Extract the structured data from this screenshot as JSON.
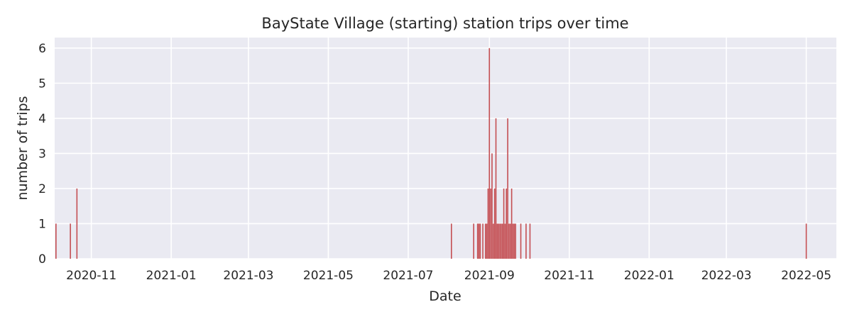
{
  "chart_data": {
    "type": "bar",
    "title": "BayState Village (starting) station trips over time",
    "xlabel": "Date",
    "ylabel": "number of trips",
    "x_range": [
      "2020-10-04",
      "2022-05-24"
    ],
    "ylim": [
      0,
      6.3
    ],
    "grid": true,
    "x_ticks": [
      "2020-11",
      "2021-01",
      "2021-03",
      "2021-05",
      "2021-07",
      "2021-09",
      "2021-11",
      "2022-01",
      "2022-03",
      "2022-05"
    ],
    "y_ticks": [
      0,
      1,
      2,
      3,
      4,
      5,
      6
    ],
    "bar_color": "#c44e52",
    "background_color": "#eaeaf2",
    "dates": [
      "2020-10-05",
      "2020-10-16",
      "2020-10-21",
      "2021-08-03",
      "2021-08-20",
      "2021-08-23",
      "2021-08-24",
      "2021-08-25",
      "2021-08-27",
      "2021-08-29",
      "2021-08-30",
      "2021-08-31",
      "2021-09-01",
      "2021-09-02",
      "2021-09-03",
      "2021-09-04",
      "2021-09-05",
      "2021-09-06",
      "2021-09-07",
      "2021-09-08",
      "2021-09-09",
      "2021-09-10",
      "2021-09-11",
      "2021-09-12",
      "2021-09-13",
      "2021-09-14",
      "2021-09-15",
      "2021-09-16",
      "2021-09-17",
      "2021-09-18",
      "2021-09-19",
      "2021-09-20",
      "2021-09-21",
      "2021-09-25",
      "2021-09-29",
      "2021-10-02",
      "2022-05-01"
    ],
    "values": [
      1,
      1,
      2,
      1,
      1,
      1,
      1,
      1,
      1,
      1,
      1,
      2,
      6,
      2,
      3,
      1,
      2,
      4,
      1,
      1,
      1,
      1,
      1,
      2,
      1,
      2,
      4,
      1,
      1,
      2,
      1,
      1,
      1,
      1,
      1,
      1,
      1
    ]
  }
}
